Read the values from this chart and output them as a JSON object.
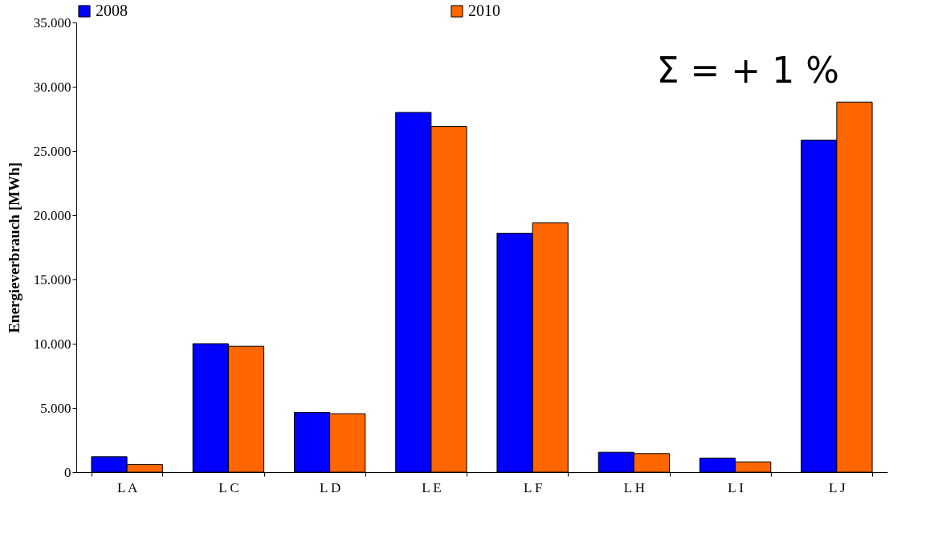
{
  "chart_data": {
    "type": "bar",
    "ylabel": "Energieverbrauch [MWh]",
    "categories": [
      "L A",
      "L C",
      "L D",
      "L E",
      "L F",
      "L H",
      "L I",
      "L J"
    ],
    "series": [
      {
        "name": "2008",
        "color": "#0000ff",
        "values": [
          1200,
          10000,
          4650,
          28000,
          18600,
          1550,
          1100,
          25850
        ]
      },
      {
        "name": "2010",
        "color": "#ff6600",
        "values": [
          600,
          9800,
          4550,
          26900,
          19400,
          1450,
          800,
          28800
        ]
      }
    ],
    "ylim": [
      0,
      35000
    ],
    "yticks": [
      {
        "value": 0,
        "label": "0"
      },
      {
        "value": 5000,
        "label": "5.000"
      },
      {
        "value": 10000,
        "label": "10.000"
      },
      {
        "value": 15000,
        "label": "15.000"
      },
      {
        "value": 20000,
        "label": "20.000"
      },
      {
        "value": 25000,
        "label": "25.000"
      },
      {
        "value": 30000,
        "label": "30.000"
      },
      {
        "value": 35000,
        "label": "35.000"
      }
    ],
    "grid": false,
    "legend": "top",
    "annotations": [
      "Σ = + 1 %"
    ]
  }
}
